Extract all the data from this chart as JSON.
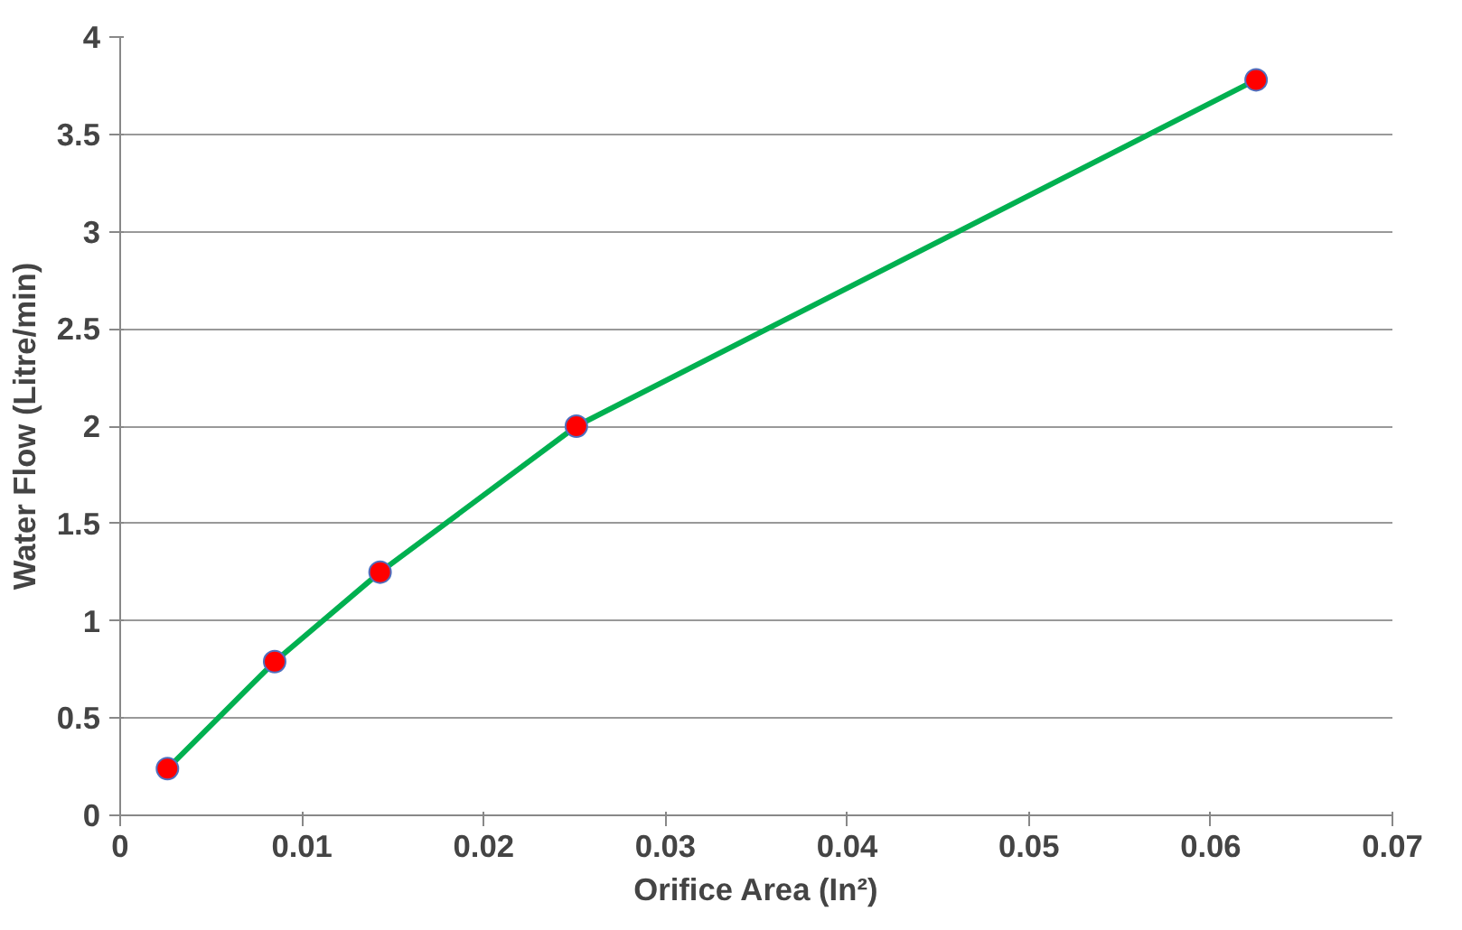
{
  "chart_data": {
    "type": "line",
    "xlabel": "Orifice Area (In²)",
    "ylabel": "Water Flow (Litre/min)",
    "x": [
      0.0026,
      0.0085,
      0.0143,
      0.0251,
      0.0625
    ],
    "series": [
      {
        "color": "#00b050",
        "values": [
          0.24,
          0.79,
          1.25,
          2.0,
          3.78
        ]
      }
    ],
    "marker": "circle",
    "xlim": [
      0,
      0.07
    ],
    "ylim": [
      0,
      4
    ],
    "xticks": [
      0,
      0.01,
      0.02,
      0.03,
      0.04,
      0.05,
      0.06,
      0.07
    ],
    "yticks": [
      0,
      0.5,
      1,
      1.5,
      2,
      2.5,
      3,
      3.5,
      4
    ],
    "grid": "y"
  }
}
